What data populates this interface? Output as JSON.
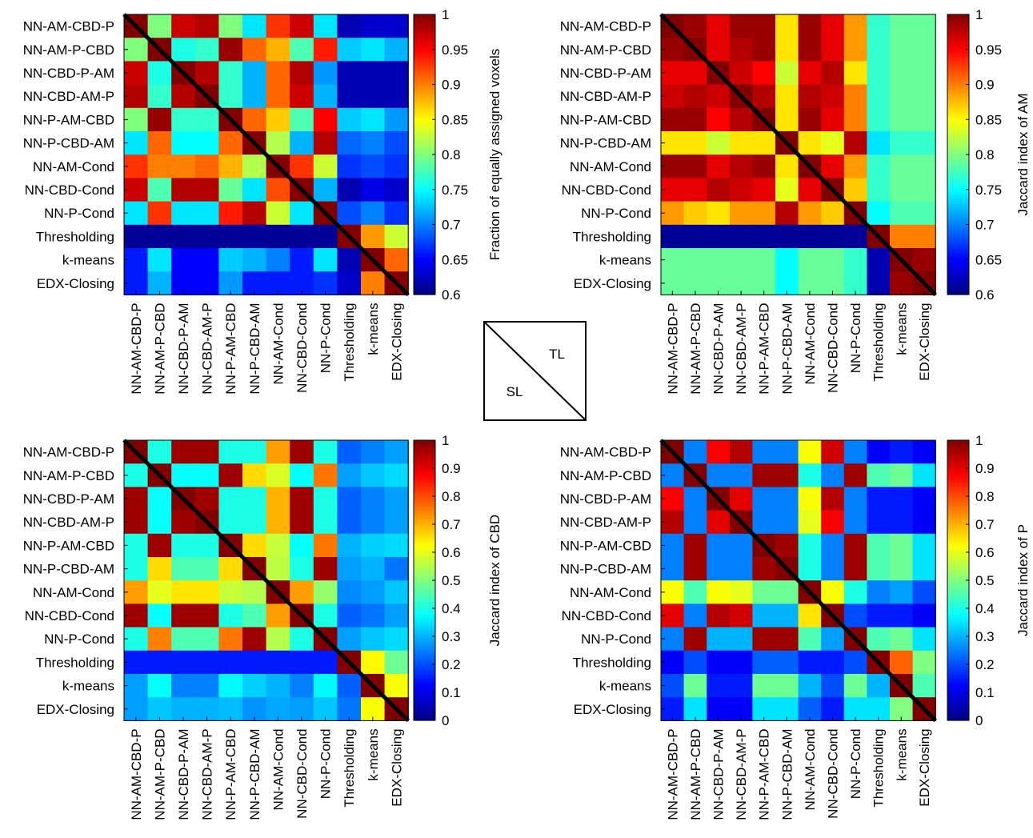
{
  "colors": {
    "frame": "#000000",
    "diagonal": "#000000",
    "background": "#ffffff"
  },
  "legend_inset": {
    "upper_label": "TL",
    "lower_label": "SL"
  },
  "chart_data": [
    {
      "type": "heatmap",
      "id": "fraction",
      "title": "",
      "colorbar_label": "Fraction of equally assigned voxels",
      "clim": [
        0.6,
        1.0
      ],
      "colorbar_ticks": [
        "0.6",
        "0.65",
        "0.7",
        "0.75",
        "0.8",
        "0.85",
        "0.9",
        "0.95",
        "1"
      ],
      "colormap": "jet",
      "row_labels": [
        "NN-AM-CBD-P",
        "NN-AM-P-CBD",
        "NN-CBD-P-AM",
        "NN-CBD-AM-P",
        "NN-P-AM-CBD",
        "NN-P-CBD-AM",
        "NN-AM-Cond",
        "NN-CBD-Cond",
        "NN-P-Cond",
        "Thresholding",
        "k-means",
        "EDX-Closing"
      ],
      "col_labels": [
        "NN-AM-CBD-P",
        "NN-AM-P-CBD",
        "NN-CBD-P-AM",
        "NN-CBD-AM-P",
        "NN-P-AM-CBD",
        "NN-P-CBD-AM",
        "NN-AM-Cond",
        "NN-CBD-Cond",
        "NN-P-Cond",
        "Thresholding",
        "k-means",
        "EDX-Closing"
      ],
      "values": [
        [
          1.0,
          0.8,
          0.97,
          0.98,
          0.8,
          0.74,
          0.93,
          0.97,
          0.74,
          0.62,
          0.63,
          0.63
        ],
        [
          0.8,
          1.0,
          0.76,
          0.77,
          0.99,
          0.91,
          0.88,
          0.78,
          0.94,
          0.73,
          0.74,
          0.72
        ],
        [
          0.97,
          0.76,
          1.0,
          0.98,
          0.77,
          0.72,
          0.91,
          0.98,
          0.71,
          0.62,
          0.62,
          0.62
        ],
        [
          0.98,
          0.77,
          0.98,
          1.0,
          0.77,
          0.72,
          0.91,
          0.97,
          0.72,
          0.62,
          0.62,
          0.62
        ],
        [
          0.8,
          0.99,
          0.77,
          0.77,
          1.0,
          0.91,
          0.87,
          0.78,
          0.95,
          0.73,
          0.74,
          0.71
        ],
        [
          0.74,
          0.91,
          0.75,
          0.75,
          0.91,
          1.0,
          0.82,
          0.72,
          0.98,
          0.69,
          0.7,
          0.68
        ],
        [
          0.93,
          0.9,
          0.9,
          0.91,
          0.88,
          0.82,
          1.0,
          0.93,
          0.83,
          0.67,
          0.68,
          0.67
        ],
        [
          0.97,
          0.78,
          0.98,
          0.98,
          0.79,
          0.74,
          0.92,
          1.0,
          0.72,
          0.62,
          0.64,
          0.63
        ],
        [
          0.74,
          0.93,
          0.74,
          0.74,
          0.94,
          0.98,
          0.83,
          0.74,
          1.0,
          0.68,
          0.7,
          0.67
        ],
        [
          0.61,
          0.61,
          0.61,
          0.61,
          0.61,
          0.61,
          0.61,
          0.61,
          0.61,
          1.0,
          0.89,
          0.83
        ],
        [
          0.66,
          0.74,
          0.65,
          0.65,
          0.73,
          0.72,
          0.7,
          0.66,
          0.74,
          0.62,
          1.0,
          0.91
        ],
        [
          0.66,
          0.72,
          0.65,
          0.65,
          0.71,
          0.66,
          0.66,
          0.66,
          0.67,
          0.63,
          0.9,
          1.0
        ]
      ]
    },
    {
      "type": "heatmap",
      "id": "jaccard-am",
      "title": "",
      "colorbar_label": "Jaccard index of AM",
      "clim": [
        0.6,
        1.0
      ],
      "colorbar_ticks": [
        "0.6",
        "0.65",
        "0.7",
        "0.75",
        "0.8",
        "0.85",
        "0.9",
        "0.95",
        "1"
      ],
      "colormap": "jet",
      "row_labels": [
        "NN-AM-CBD-P",
        "NN-AM-P-CBD",
        "NN-CBD-P-AM",
        "NN-CBD-AM-P",
        "NN-P-AM-CBD",
        "NN-P-CBD-AM",
        "NN-AM-Cond",
        "NN-CBD-Cond",
        "NN-P-Cond",
        "Thresholding",
        "k-means",
        "EDX-Closing"
      ],
      "col_labels": [
        "NN-AM-CBD-P",
        "NN-AM-P-CBD",
        "NN-CBD-P-AM",
        "NN-CBD-AM-P",
        "NN-P-AM-CBD",
        "NN-P-CBD-AM",
        "NN-AM-Cond",
        "NN-CBD-Cond",
        "NN-P-Cond",
        "Thresholding",
        "k-means",
        "EDX-Closing"
      ],
      "values": [
        [
          1.0,
          0.99,
          0.96,
          0.99,
          0.99,
          0.86,
          0.99,
          0.96,
          0.89,
          0.77,
          0.79,
          0.79
        ],
        [
          0.99,
          1.0,
          0.96,
          0.98,
          0.99,
          0.86,
          0.99,
          0.96,
          0.89,
          0.77,
          0.79,
          0.79
        ],
        [
          0.96,
          0.96,
          1.0,
          0.97,
          0.95,
          0.83,
          0.96,
          0.98,
          0.86,
          0.77,
          0.79,
          0.79
        ],
        [
          0.97,
          0.98,
          0.97,
          1.0,
          0.98,
          0.86,
          0.98,
          0.97,
          0.9,
          0.77,
          0.79,
          0.79
        ],
        [
          0.99,
          0.99,
          0.95,
          0.98,
          1.0,
          0.86,
          0.99,
          0.96,
          0.9,
          0.77,
          0.79,
          0.79
        ],
        [
          0.86,
          0.86,
          0.83,
          0.86,
          0.86,
          1.0,
          0.86,
          0.84,
          0.98,
          0.74,
          0.77,
          0.77
        ],
        [
          0.99,
          0.99,
          0.96,
          0.98,
          0.99,
          0.86,
          1.0,
          0.96,
          0.89,
          0.77,
          0.79,
          0.79
        ],
        [
          0.96,
          0.96,
          0.98,
          0.97,
          0.96,
          0.84,
          0.96,
          1.0,
          0.87,
          0.77,
          0.79,
          0.79
        ],
        [
          0.89,
          0.87,
          0.86,
          0.89,
          0.89,
          0.98,
          0.89,
          0.87,
          1.0,
          0.75,
          0.78,
          0.78
        ],
        [
          0.61,
          0.61,
          0.61,
          0.61,
          0.61,
          0.61,
          0.61,
          0.61,
          0.61,
          1.0,
          0.9,
          0.9
        ],
        [
          0.79,
          0.79,
          0.79,
          0.79,
          0.79,
          0.75,
          0.79,
          0.79,
          0.77,
          0.62,
          1.0,
          0.99
        ],
        [
          0.79,
          0.79,
          0.79,
          0.79,
          0.79,
          0.75,
          0.79,
          0.79,
          0.77,
          0.62,
          0.99,
          1.0
        ]
      ]
    },
    {
      "type": "heatmap",
      "id": "jaccard-cbd",
      "title": "",
      "colorbar_label": "Jaccard index of CBD",
      "clim": [
        0,
        1
      ],
      "colorbar_ticks": [
        "0",
        "0.1",
        "0.2",
        "0.3",
        "0.4",
        "0.5",
        "0.6",
        "0.7",
        "0.8",
        "0.9",
        "1"
      ],
      "colormap": "jet",
      "row_labels": [
        "NN-AM-CBD-P",
        "NN-AM-P-CBD",
        "NN-CBD-P-AM",
        "NN-CBD-AM-P",
        "NN-P-AM-CBD",
        "NN-P-CBD-AM",
        "NN-AM-Cond",
        "NN-CBD-Cond",
        "NN-P-Cond",
        "Thresholding",
        "k-means",
        "EDX-Closing"
      ],
      "col_labels": [
        "NN-AM-CBD-P",
        "NN-AM-P-CBD",
        "NN-CBD-P-AM",
        "NN-CBD-AM-P",
        "NN-P-AM-CBD",
        "NN-P-CBD-AM",
        "NN-AM-Cond",
        "NN-CBD-Cond",
        "NN-P-Cond",
        "Thresholding",
        "k-means",
        "EDX-Closing"
      ],
      "values": [
        [
          1.0,
          0.4,
          0.97,
          0.97,
          0.4,
          0.4,
          0.72,
          0.97,
          0.4,
          0.22,
          0.25,
          0.28
        ],
        [
          0.4,
          1.0,
          0.38,
          0.38,
          0.97,
          0.66,
          0.59,
          0.38,
          0.76,
          0.28,
          0.32,
          0.34
        ],
        [
          0.97,
          0.38,
          1.0,
          0.97,
          0.4,
          0.4,
          0.7,
          0.97,
          0.4,
          0.22,
          0.25,
          0.28
        ],
        [
          0.97,
          0.38,
          0.97,
          1.0,
          0.4,
          0.4,
          0.7,
          0.97,
          0.4,
          0.22,
          0.25,
          0.28
        ],
        [
          0.4,
          0.97,
          0.4,
          0.4,
          1.0,
          0.66,
          0.57,
          0.38,
          0.76,
          0.3,
          0.33,
          0.34
        ],
        [
          0.4,
          0.66,
          0.45,
          0.45,
          0.66,
          1.0,
          0.56,
          0.4,
          0.97,
          0.28,
          0.3,
          0.24
        ],
        [
          0.72,
          0.6,
          0.65,
          0.65,
          0.57,
          0.55,
          1.0,
          0.72,
          0.52,
          0.26,
          0.28,
          0.32
        ],
        [
          0.97,
          0.38,
          0.97,
          0.97,
          0.4,
          0.45,
          0.72,
          1.0,
          0.4,
          0.22,
          0.24,
          0.28
        ],
        [
          0.4,
          0.75,
          0.45,
          0.45,
          0.76,
          0.97,
          0.55,
          0.4,
          1.0,
          0.28,
          0.32,
          0.34
        ],
        [
          0.15,
          0.15,
          0.15,
          0.15,
          0.15,
          0.15,
          0.15,
          0.15,
          0.15,
          1.0,
          0.63,
          0.48
        ],
        [
          0.28,
          0.38,
          0.25,
          0.25,
          0.37,
          0.33,
          0.3,
          0.25,
          0.37,
          0.22,
          1.0,
          0.62
        ],
        [
          0.28,
          0.32,
          0.3,
          0.3,
          0.31,
          0.27,
          0.29,
          0.28,
          0.32,
          0.24,
          0.62,
          1.0
        ]
      ]
    },
    {
      "type": "heatmap",
      "id": "jaccard-p",
      "title": "",
      "colorbar_label": "Jaccard index of P",
      "clim": [
        0,
        1
      ],
      "colorbar_ticks": [
        "0",
        "0.1",
        "0.2",
        "0.3",
        "0.4",
        "0.5",
        "0.6",
        "0.7",
        "0.8",
        "0.9",
        "1"
      ],
      "colormap": "jet",
      "row_labels": [
        "NN-AM-CBD-P",
        "NN-AM-P-CBD",
        "NN-CBD-P-AM",
        "NN-CBD-AM-P",
        "NN-P-AM-CBD",
        "NN-P-CBD-AM",
        "NN-AM-Cond",
        "NN-CBD-Cond",
        "NN-P-Cond",
        "Thresholding",
        "k-means",
        "EDX-Closing"
      ],
      "col_labels": [
        "NN-AM-CBD-P",
        "NN-AM-P-CBD",
        "NN-CBD-P-AM",
        "NN-CBD-AM-P",
        "NN-P-AM-CBD",
        "NN-P-CBD-AM",
        "NN-AM-Cond",
        "NN-CBD-Cond",
        "NN-P-Cond",
        "Thresholding",
        "k-means",
        "EDX-Closing"
      ],
      "values": [
        [
          1.0,
          0.25,
          0.88,
          0.95,
          0.25,
          0.25,
          0.62,
          0.92,
          0.25,
          0.12,
          0.15,
          0.12
        ],
        [
          0.25,
          1.0,
          0.25,
          0.25,
          0.97,
          0.97,
          0.4,
          0.25,
          0.97,
          0.45,
          0.48,
          0.35
        ],
        [
          0.88,
          0.25,
          1.0,
          0.9,
          0.25,
          0.25,
          0.62,
          0.95,
          0.25,
          0.15,
          0.15,
          0.12
        ],
        [
          0.95,
          0.25,
          0.9,
          1.0,
          0.25,
          0.25,
          0.6,
          0.88,
          0.25,
          0.15,
          0.15,
          0.12
        ],
        [
          0.25,
          0.97,
          0.25,
          0.25,
          1.0,
          0.97,
          0.4,
          0.25,
          0.97,
          0.45,
          0.48,
          0.35
        ],
        [
          0.25,
          0.97,
          0.25,
          0.25,
          0.97,
          1.0,
          0.4,
          0.25,
          0.97,
          0.45,
          0.48,
          0.35
        ],
        [
          0.62,
          0.45,
          0.62,
          0.6,
          0.48,
          0.48,
          1.0,
          0.62,
          0.4,
          0.25,
          0.28,
          0.2
        ],
        [
          0.9,
          0.25,
          0.95,
          0.92,
          0.3,
          0.3,
          0.65,
          1.0,
          0.2,
          0.15,
          0.15,
          0.12
        ],
        [
          0.25,
          0.97,
          0.3,
          0.3,
          0.97,
          0.97,
          0.45,
          0.28,
          1.0,
          0.45,
          0.48,
          0.35
        ],
        [
          0.12,
          0.2,
          0.12,
          0.12,
          0.22,
          0.22,
          0.15,
          0.15,
          0.2,
          1.0,
          0.78,
          0.5
        ],
        [
          0.2,
          0.48,
          0.15,
          0.15,
          0.48,
          0.48,
          0.3,
          0.2,
          0.48,
          0.3,
          1.0,
          0.45
        ],
        [
          0.15,
          0.35,
          0.12,
          0.12,
          0.35,
          0.35,
          0.22,
          0.15,
          0.35,
          0.35,
          0.5,
          1.0
        ]
      ]
    }
  ]
}
